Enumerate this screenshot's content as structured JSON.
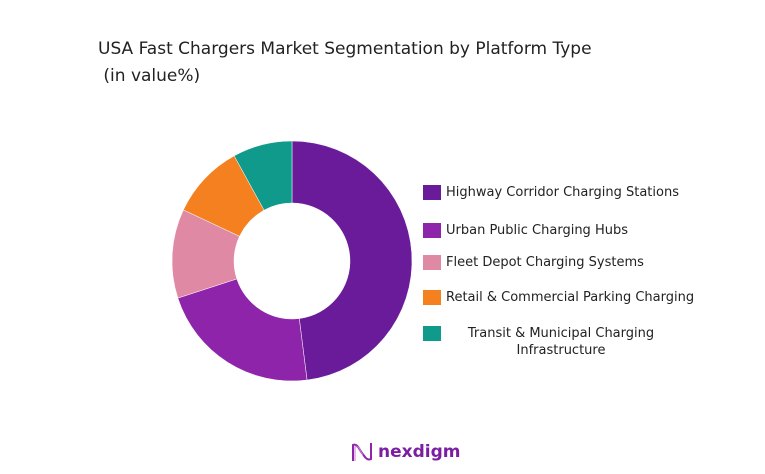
{
  "chart_data": {
    "type": "donut",
    "title": "USA Fast Chargers Market Segmentation by Platform Type\n (in value%)",
    "categories": [
      "Highway Corridor Charging Stations",
      "Urban Public Charging Hubs",
      "Fleet Depot Charging Systems",
      "Retail & Commercial Parking Charging",
      "Transit & Municipal Charging Infrastructure"
    ],
    "values": [
      48,
      22,
      12,
      10,
      8
    ],
    "colors": [
      "#6a1b9a",
      "#8e24aa",
      "#e089a5",
      "#f5801f",
      "#0f9a8c"
    ],
    "legend_position": "right"
  },
  "legend_labels": [
    "Highway Corridor Charging Stations",
    "Urban Public Charging Hubs",
    "Fleet Depot Charging Systems",
    "Retail & Commercial Parking Charging",
    "Transit & Municipal Charging\nInfrastructure"
  ],
  "logo": {
    "text": "nexdigm"
  }
}
